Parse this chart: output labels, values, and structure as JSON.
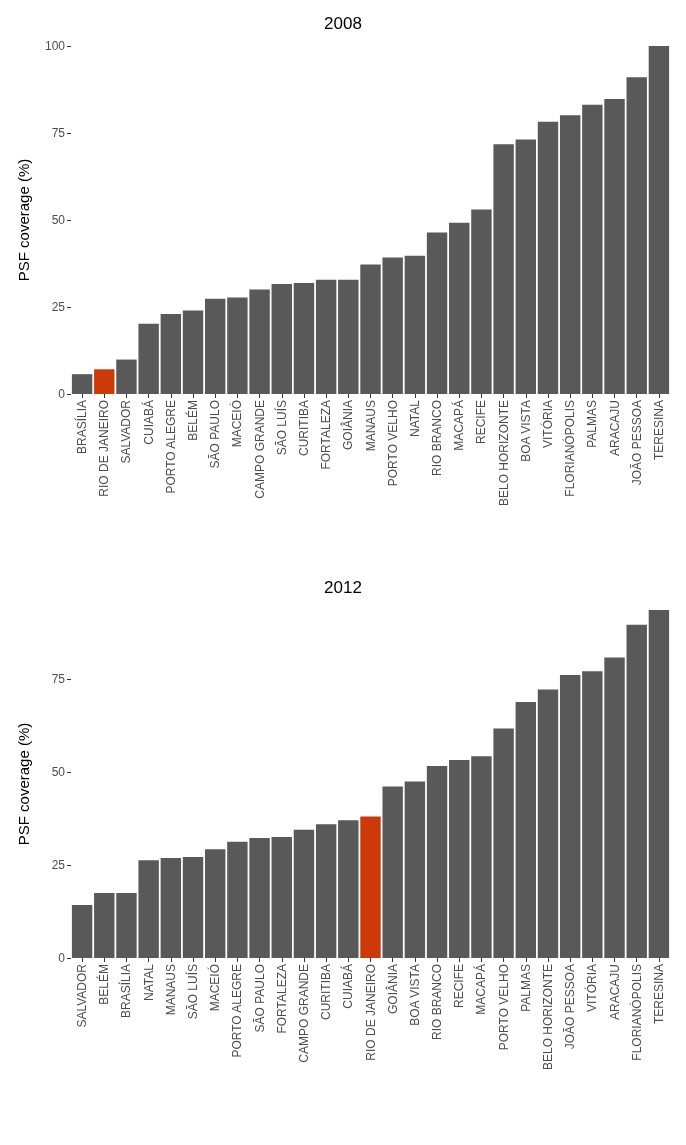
{
  "chart_data": [
    {
      "type": "bar",
      "title": "2008",
      "ylabel": "PSF coverage (%)",
      "categories": [
        "BRASÍLIA",
        "RIO DE JANEIRO",
        "SALVADOR",
        "CUIABÁ",
        "PORTO ALEGRE",
        "BELÉM",
        "SÃO PAULO",
        "MACEIÓ",
        "CAMPO GRANDE",
        "SÃO LUÍS",
        "CURITIBA",
        "FORTALEZA",
        "GOIÂNIA",
        "MANAUS",
        "PORTO VELHO",
        "NATAL",
        "RIO BRANCO",
        "MACAPÁ",
        "RECIFE",
        "BELO HORIZONTE",
        "BOA VISTA",
        "VITÓRIA",
        "FLORIANÓPOLIS",
        "PALMAS",
        "ARACAJU",
        "JOÃO PESSOA",
        "TERESINA"
      ],
      "values": [
        5.7,
        7.1,
        9.9,
        20.2,
        23.0,
        24.0,
        27.4,
        27.7,
        30.0,
        31.6,
        31.9,
        32.8,
        32.8,
        37.2,
        39.2,
        39.7,
        46.4,
        49.2,
        53.0,
        71.8,
        73.1,
        78.2,
        80.1,
        83.1,
        84.8,
        91.0,
        100
      ],
      "colors": [
        "#595959",
        "#cc3a0a",
        "#595959",
        "#595959",
        "#595959",
        "#595959",
        "#595959",
        "#595959",
        "#595959",
        "#595959",
        "#595959",
        "#595959",
        "#595959",
        "#595959",
        "#595959",
        "#595959",
        "#595959",
        "#595959",
        "#595959",
        "#595959",
        "#595959",
        "#595959",
        "#595959",
        "#595959",
        "#595959",
        "#595959",
        "#595959"
      ],
      "ylim": [
        0,
        100
      ],
      "yticks": [
        0,
        25,
        50,
        75,
        100
      ],
      "grid": false
    },
    {
      "type": "bar",
      "title": "2012",
      "ylabel": "PSF coverage (%)",
      "categories": [
        "SALVADOR",
        "BELÉM",
        "BRASÍLIA",
        "NATAL",
        "MANAUS",
        "SÃO LUÍS",
        "MACEIÓ",
        "PORTO ALEGRE",
        "SÃO PAULO",
        "FORTALEZA",
        "CAMPO GRANDE",
        "CURITIBA",
        "CUIABÁ",
        "RIO DE JANEIRO",
        "GOIÂNIA",
        "BOA VISTA",
        "RIO BRANCO",
        "RECIFE",
        "MACAPÁ",
        "PORTO VELHO",
        "PALMAS",
        "BELO HORIZONTE",
        "JOÃO PESSOA",
        "VITÓRIA",
        "ARACAJU",
        "FLORIANÓPOLIS",
        "TERESINA"
      ],
      "values": [
        14.3,
        17.5,
        17.5,
        26.3,
        26.9,
        27.2,
        29.3,
        31.3,
        32.3,
        32.6,
        34.5,
        36.0,
        37.1,
        38.1,
        46.2,
        47.5,
        51.7,
        53.3,
        54.3,
        61.8,
        68.9,
        72.3,
        76.2,
        77.2,
        80.9,
        89.7,
        93.7
      ],
      "colors": [
        "#595959",
        "#595959",
        "#595959",
        "#595959",
        "#595959",
        "#595959",
        "#595959",
        "#595959",
        "#595959",
        "#595959",
        "#595959",
        "#595959",
        "#595959",
        "#cc3a0a",
        "#595959",
        "#595959",
        "#595959",
        "#595959",
        "#595959",
        "#595959",
        "#595959",
        "#595959",
        "#595959",
        "#595959",
        "#595959",
        "#595959",
        "#595959"
      ],
      "ylim": [
        0,
        93.7
      ],
      "yticks": [
        0,
        25,
        50,
        75
      ],
      "grid": false
    }
  ]
}
